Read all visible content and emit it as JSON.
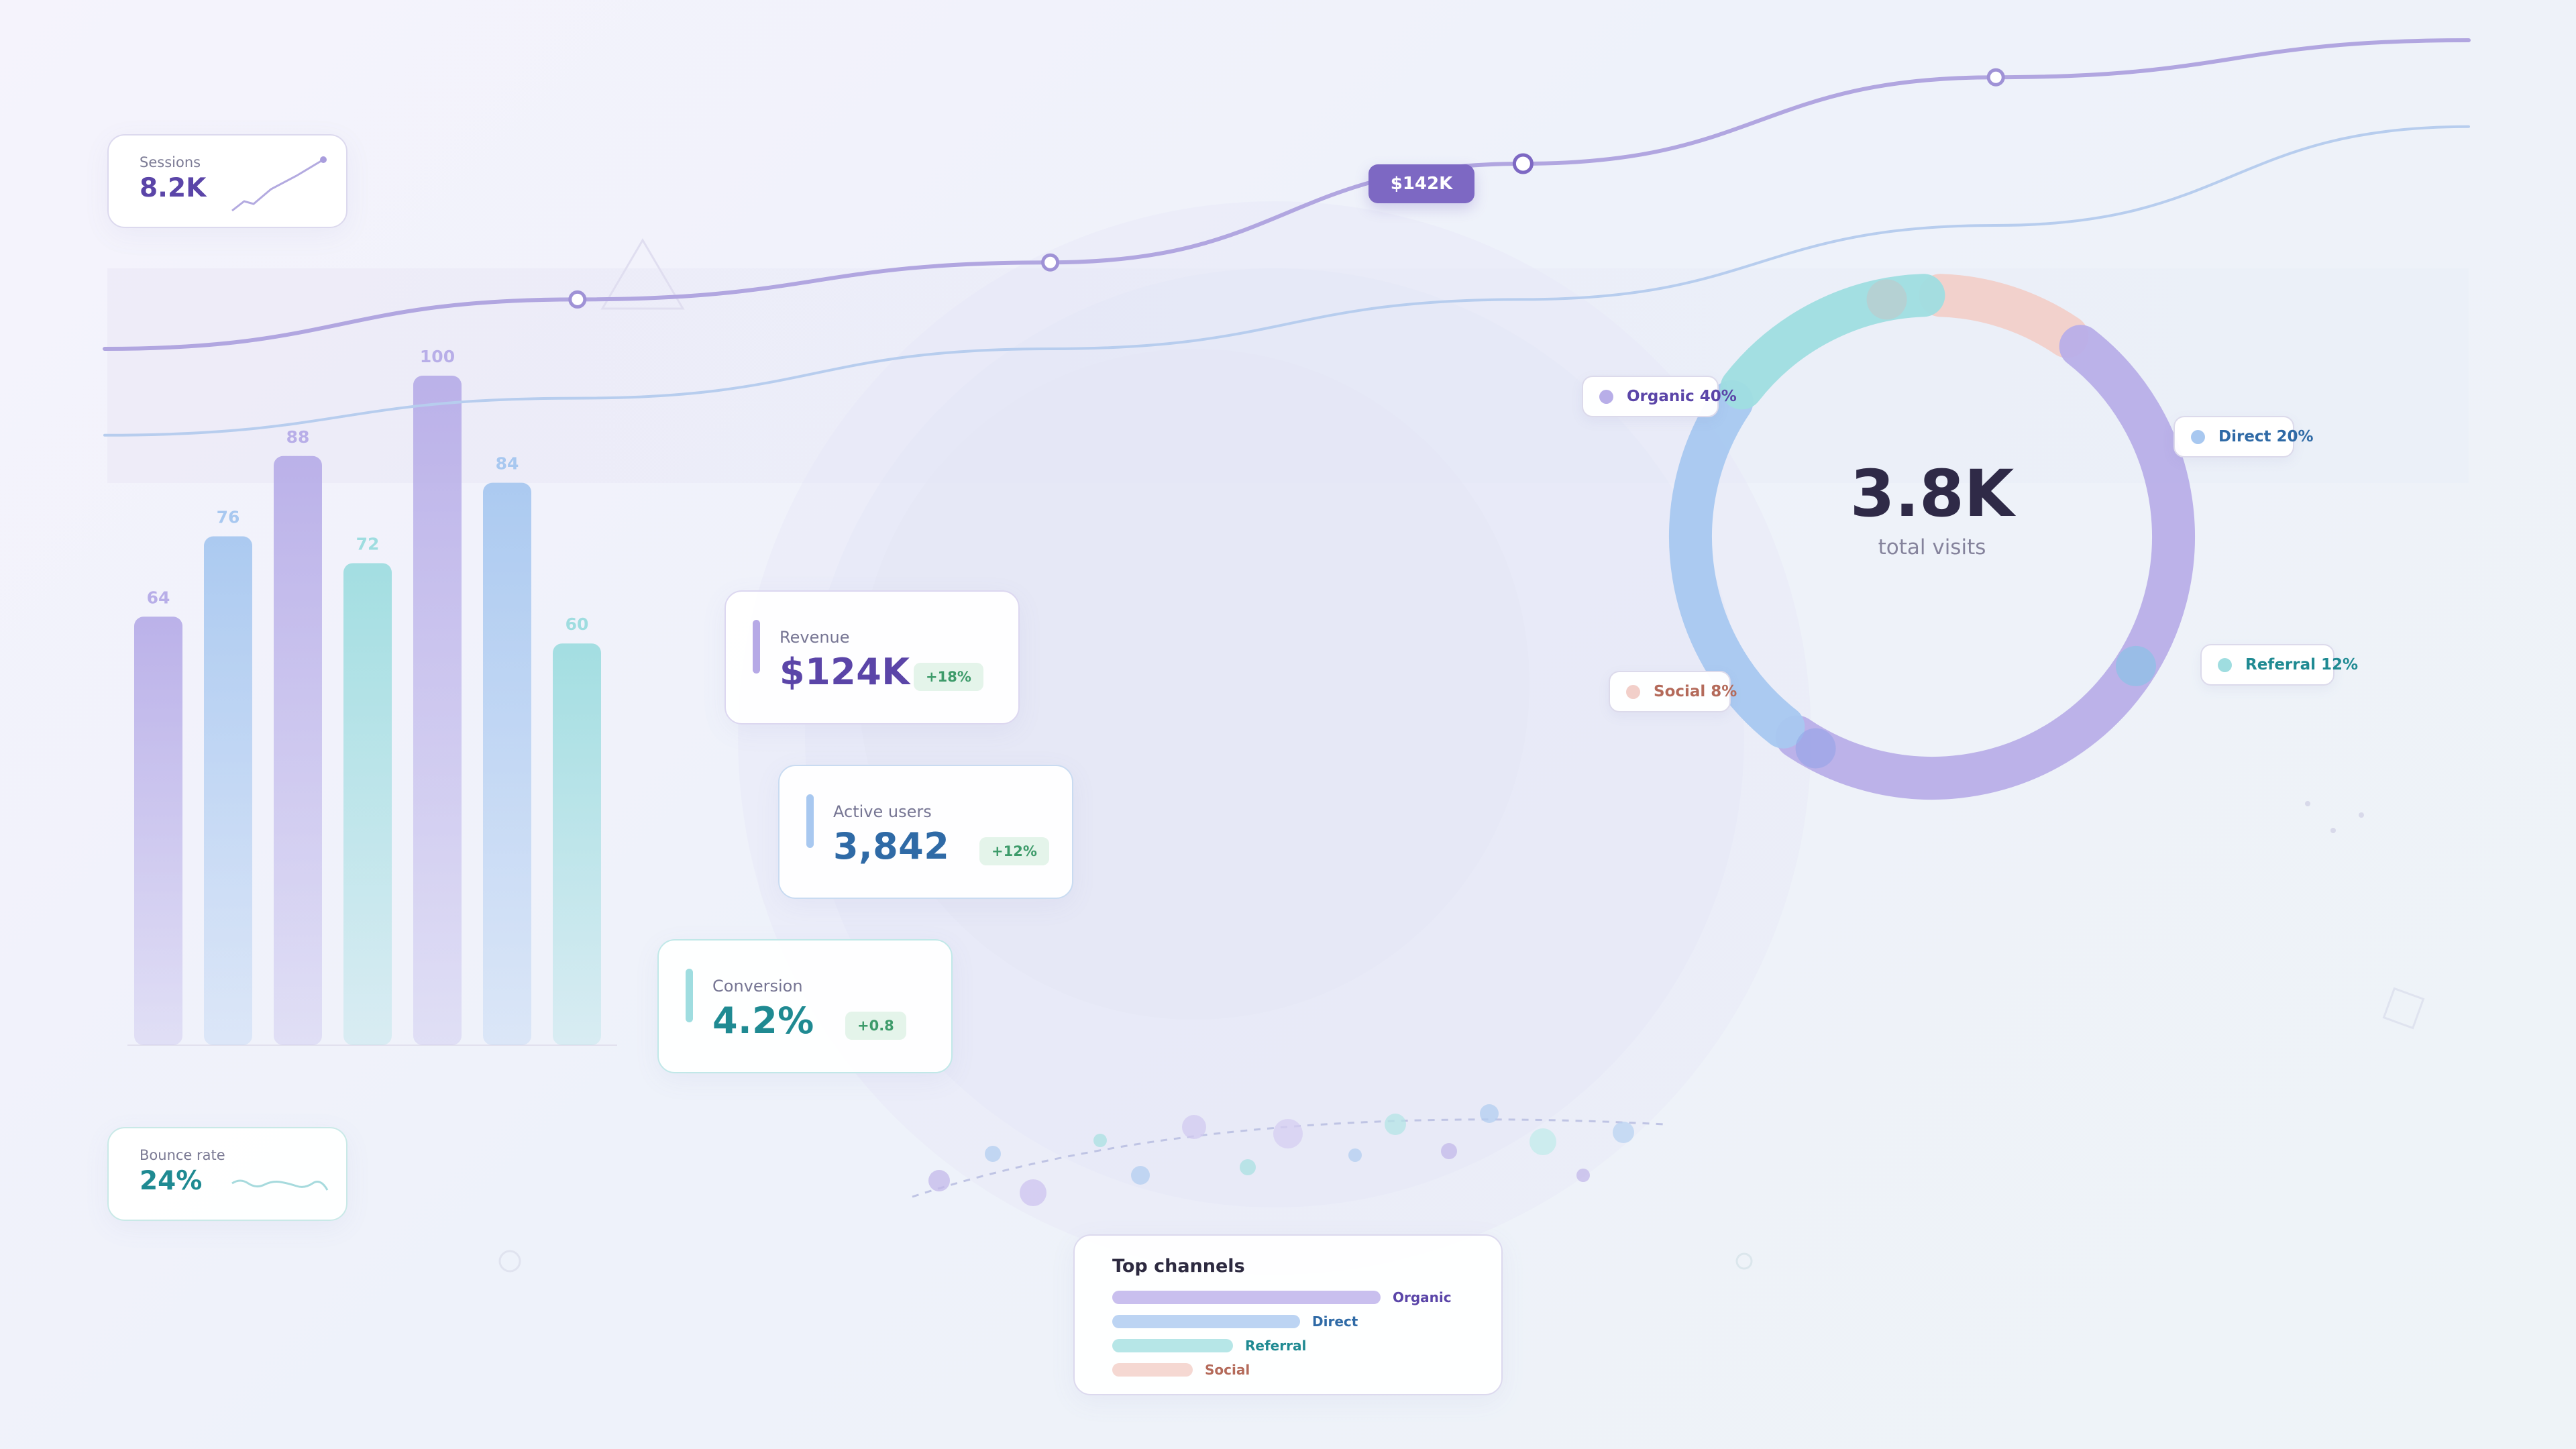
{
  "colors": {
    "purple": "#b8aee8",
    "purple_dark": "#5b45a8",
    "blue": "#a8c8f0",
    "blue_dark": "#2f6aa6",
    "teal": "#9fdde0",
    "teal_dark": "#1f8a92",
    "peach": "#f2cfc9",
    "peach_dark": "#b46a5a",
    "positive": "#3d9b6a"
  },
  "mini_kpis": [
    {
      "label": "Sessions",
      "value": "8.2K",
      "color": "#5b45a8",
      "sparkline": [
        2,
        4,
        3,
        6,
        9,
        12
      ]
    },
    {
      "label": "Bounce rate",
      "value": "24%",
      "color": "#1f8a92",
      "sparkline": [
        5,
        6,
        4,
        6,
        3,
        5,
        4,
        6,
        3,
        5
      ]
    }
  ],
  "metrics": [
    {
      "label": "Revenue",
      "value": "$124K",
      "delta": "+18%",
      "accent": "#b6a9e6",
      "value_color": "#5b45a8",
      "border": "#dcd7f0"
    },
    {
      "label": "Active users",
      "value": "3,842",
      "delta": "+12%",
      "accent": "#a8c8f0",
      "value_color": "#2f6aa6",
      "border": "#c9dbf1"
    },
    {
      "label": "Conversion",
      "value": "4.2%",
      "delta": "+0.8",
      "accent": "#9fdde0",
      "value_color": "#1f8a92",
      "border": "#c1e8e8"
    }
  ],
  "chart_data": [
    {
      "type": "bar",
      "categories": [
        "",
        "",
        "",
        "",
        "",
        "",
        ""
      ],
      "values": [
        64,
        76,
        88,
        72,
        100,
        84,
        60
      ],
      "series_colors": [
        "#b8aee8",
        "#a8c8f0",
        "#b8aee8",
        "#9fdde0",
        "#b8aee8",
        "#a8c8f0",
        "#9fdde0"
      ],
      "ylim": [
        0,
        100
      ],
      "data_labels": true
    },
    {
      "type": "line",
      "series": [
        {
          "values": [
            50,
            58,
            64,
            80,
            94,
            100
          ],
          "markers": [
            1,
            2,
            3,
            4
          ],
          "color": "#b1a6e0"
        },
        {
          "values": [
            36,
            42,
            50,
            58,
            70,
            86
          ],
          "markers": [],
          "color": "#b7cdee"
        }
      ],
      "highlight_label": "$142K",
      "highlight_index": 3
    },
    {
      "type": "pie",
      "style": "donut",
      "center_value": "3.8K",
      "center_label": "total visits",
      "slices": [
        {
          "name": "Organic 40%",
          "value": 40,
          "color": "#b8aee8",
          "text_color": "#5b45a8"
        },
        {
          "name": "Direct 20%",
          "value": 20,
          "color": "#a8c8f0",
          "text_color": "#2f6aa6"
        },
        {
          "name": "Referral 12%",
          "value": 12,
          "color": "#9fdde0",
          "text_color": "#1f8a92"
        },
        {
          "name": "Social 8%",
          "value": 8,
          "color": "#f2cfc9",
          "text_color": "#b46a5a"
        }
      ]
    },
    {
      "type": "bar",
      "orientation": "horizontal",
      "title": "Top channels",
      "categories": [
        "Organic",
        "Direct",
        "Referral",
        "Social"
      ],
      "values": [
        40,
        28,
        18,
        12
      ],
      "colors": [
        "#c9bfee",
        "#bcd4f3",
        "#b6e6e7",
        "#f5d8d2"
      ],
      "label_colors": [
        "#5b45a8",
        "#2f6aa6",
        "#1f8a92",
        "#b46a5a"
      ]
    }
  ]
}
